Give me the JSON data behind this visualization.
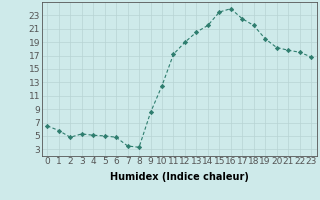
{
  "x": [
    0,
    1,
    2,
    3,
    4,
    5,
    6,
    7,
    8,
    9,
    10,
    11,
    12,
    13,
    14,
    15,
    16,
    17,
    18,
    19,
    20,
    21,
    22,
    23
  ],
  "y": [
    6.5,
    5.8,
    4.8,
    5.3,
    5.1,
    5.0,
    4.8,
    3.5,
    3.3,
    8.5,
    12.5,
    17.2,
    19.0,
    20.5,
    21.5,
    23.5,
    24.0,
    22.5,
    21.5,
    19.5,
    18.2,
    17.8,
    17.5,
    16.8
  ],
  "line_color": "#2e7d6e",
  "marker": "D",
  "marker_size": 2.2,
  "bg_color": "#ceeaea",
  "grid_color": "#b8d4d4",
  "xlabel": "Humidex (Indice chaleur)",
  "xlim": [
    -0.5,
    23.5
  ],
  "ylim": [
    2,
    25
  ],
  "yticks": [
    3,
    5,
    7,
    9,
    11,
    13,
    15,
    17,
    19,
    21,
    23
  ],
  "xticks": [
    0,
    1,
    2,
    3,
    4,
    5,
    6,
    7,
    8,
    9,
    10,
    11,
    12,
    13,
    14,
    15,
    16,
    17,
    18,
    19,
    20,
    21,
    22,
    23
  ],
  "axis_color": "#555555",
  "font_size": 6.5
}
